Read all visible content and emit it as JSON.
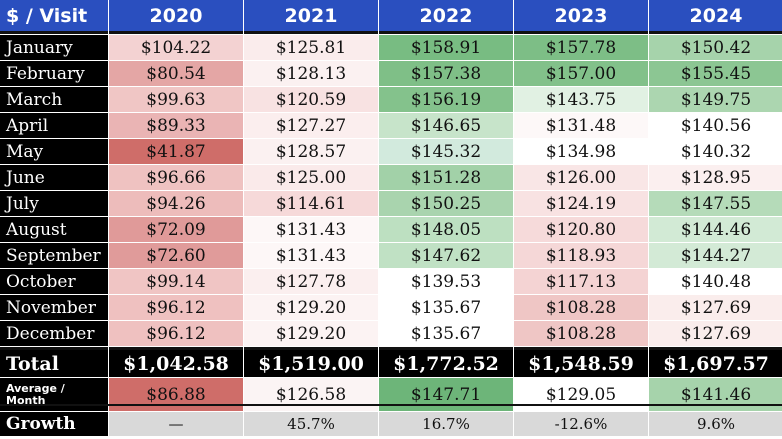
{
  "table": {
    "corner_label": "$ / Visit",
    "years": [
      "2020",
      "2021",
      "2022",
      "2023",
      "2024"
    ],
    "rows": [
      {
        "month": "January",
        "values": [
          "$104.22",
          "$125.81",
          "$158.91",
          "$157.78",
          "$150.42"
        ],
        "colors": [
          "#f3d2d2",
          "#faecec",
          "#78bc82",
          "#7dbe86",
          "#a6d3ab"
        ]
      },
      {
        "month": "February",
        "values": [
          "$80.54",
          "$128.13",
          "$157.38",
          "$157.00",
          "$155.45"
        ],
        "colors": [
          "#e4a6a5",
          "#fbf1f1",
          "#7fbf87",
          "#82c18a",
          "#8cc693"
        ]
      },
      {
        "month": "March",
        "values": [
          "$99.63",
          "$120.59",
          "$156.19",
          "$143.75",
          "$149.75"
        ],
        "colors": [
          "#f0c6c5",
          "#f8e2e2",
          "#84c28c",
          "#e1f1e3",
          "#acd6b0"
        ]
      },
      {
        "month": "April",
        "values": [
          "$89.33",
          "$127.27",
          "$146.65",
          "$131.48",
          "$140.56"
        ],
        "colors": [
          "#eab4b4",
          "#fbeeee",
          "#c7e4ca",
          "#fdf8f8",
          "#ffffff"
        ]
      },
      {
        "month": "May",
        "values": [
          "$41.87",
          "$128.57",
          "$145.32",
          "$134.98",
          "$140.32"
        ],
        "colors": [
          "#cf6d69",
          "#fbf1f1",
          "#d2eadd",
          "#ffffff",
          "#ffffff"
        ]
      },
      {
        "month": "June",
        "values": [
          "$96.66",
          "$125.00",
          "$151.28",
          "$126.00",
          "$128.95"
        ],
        "colors": [
          "#efc2c1",
          "#faeaea",
          "#a2d1a8",
          "#f9e6e6",
          "#fbefef"
        ]
      },
      {
        "month": "July",
        "values": [
          "$94.26",
          "$114.61",
          "$150.25",
          "$124.19",
          "$147.55"
        ],
        "colors": [
          "#edbcbb",
          "#f6d9d9",
          "#a9d4ae",
          "#f8e2e2",
          "#b5dbb9"
        ]
      },
      {
        "month": "August",
        "values": [
          "$72.09",
          "$131.43",
          "$148.05",
          "$120.80",
          "$144.46"
        ],
        "colors": [
          "#e09a99",
          "#fdf7f7",
          "#bde0c1",
          "#f6dada",
          "#d2ead5"
        ]
      },
      {
        "month": "September",
        "values": [
          "$72.60",
          "$131.43",
          "$147.62",
          "$118.93",
          "$144.27"
        ],
        "colors": [
          "#e09b9a",
          "#fdf7f7",
          "#c0e1c4",
          "#f5d7d7",
          "#d3ead6"
        ]
      },
      {
        "month": "October",
        "values": [
          "$99.14",
          "$127.78",
          "$139.53",
          "$117.13",
          "$140.48"
        ],
        "colors": [
          "#f0c5c4",
          "#fbefef",
          "#ffffff",
          "#f4d3d3",
          "#ffffff"
        ]
      },
      {
        "month": "November",
        "values": [
          "$96.12",
          "$129.20",
          "$135.67",
          "$108.28",
          "$127.69"
        ],
        "colors": [
          "#efc1c0",
          "#fcf3f3",
          "#ffffff",
          "#efc6c5",
          "#faedec"
        ]
      },
      {
        "month": "December",
        "values": [
          "$96.12",
          "$129.20",
          "$135.67",
          "$108.28",
          "$127.69"
        ],
        "colors": [
          "#efc1c0",
          "#fcf3f3",
          "#ffffff",
          "#efc6c5",
          "#faedec"
        ]
      }
    ],
    "total": {
      "label": "Total",
      "values": [
        "$1,042.58",
        "$1,519.00",
        "$1,772.52",
        "$1,548.59",
        "$1,697.57"
      ]
    },
    "average": {
      "label_line1": "Average /",
      "label_line2": "Month",
      "values": [
        "$86.88",
        "$126.58",
        "$147.71",
        "$129.05",
        "$141.46"
      ],
      "colors": [
        "#cf6d69",
        "#fbf4f4",
        "#6db579",
        "#ffffff",
        "#a6d3ab"
      ]
    },
    "growth": {
      "label": "Growth",
      "values": [
        "—",
        "45.7%",
        "16.7%",
        "-12.6%",
        "9.6%"
      ]
    }
  },
  "theme": {
    "header_blue": "#2a4fbf",
    "label_black": "#000000",
    "growth_gray": "#d9d9d9"
  }
}
